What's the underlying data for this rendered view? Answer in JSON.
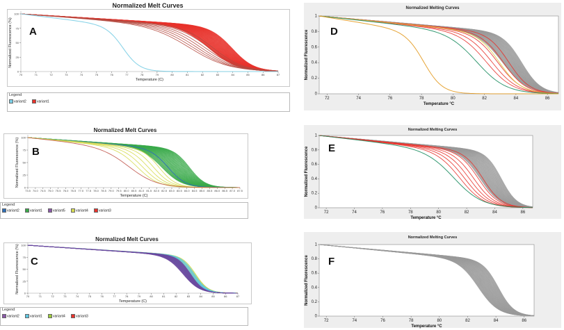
{
  "chart_data": [
    {
      "id": "A",
      "type": "line",
      "panel_label": "A",
      "title": "Normalized Melt Curves",
      "xlabel": "Temperature (C)",
      "ylabel": "Normalized Fluorescence (%)",
      "xlim": [
        70,
        87
      ],
      "ylim": [
        0,
        100
      ],
      "x_ticks": [
        70,
        71,
        72,
        73,
        74,
        75,
        76,
        77,
        78,
        79,
        80,
        81,
        82,
        83,
        84,
        85,
        86,
        87
      ],
      "y_ticks": [
        0,
        25,
        50,
        75,
        100
      ],
      "legend_title": "Legend",
      "legend": [
        {
          "name": "variant2",
          "color": "#7ecfe6"
        },
        {
          "name": "variant1",
          "color": "#e8322b"
        }
      ],
      "series": [
        {
          "name": "variant1",
          "color": "#e8322b",
          "tm": [
            82.5,
            84.0
          ],
          "n": 34,
          "width": 0.85,
          "slope": 2.2
        },
        {
          "name": "variant1",
          "color": "#b5493f",
          "tm": [
            81.3,
            82.8
          ],
          "n": 7,
          "width": 0.85,
          "slope": 3.2
        },
        {
          "name": "variant2",
          "color": "#7ecfe6",
          "tm": [
            76.8,
            76.8
          ],
          "n": 1,
          "width": 1.1,
          "slope": 1.2
        }
      ]
    },
    {
      "id": "B",
      "type": "line",
      "panel_label": "B",
      "title": "Normalized Melt Curves",
      "xlabel": "Temperature (C)",
      "ylabel": "Normalized Fluorescence (%)",
      "xlim": [
        73.5,
        87.5
      ],
      "ylim": [
        0,
        100
      ],
      "x_ticks": [
        73.5,
        74.0,
        74.5,
        75.0,
        75.5,
        76.0,
        76.5,
        77.0,
        77.5,
        78.0,
        78.5,
        79.0,
        79.5,
        80.0,
        80.5,
        81.0,
        81.5,
        82.0,
        82.5,
        83.0,
        83.5,
        84.0,
        84.5,
        85.0,
        85.5,
        86.0,
        86.5,
        87.0,
        87.5
      ],
      "y_ticks": [
        0,
        25,
        50,
        75,
        100
      ],
      "legend_title": "Legend",
      "legend": [
        {
          "name": "variant2",
          "color": "#2f6fb7"
        },
        {
          "name": "variant1",
          "color": "#3aaa4a"
        },
        {
          "name": "variant5",
          "color": "#8a58a8"
        },
        {
          "name": "variant4",
          "color": "#d6db52"
        },
        {
          "name": "variant3",
          "color": "#e8322b"
        }
      ],
      "series": [
        {
          "name": "variant1",
          "color": "#3aaa4a",
          "tm": [
            82.4,
            84.2
          ],
          "n": 32,
          "width": 0.85,
          "slope": 1.5
        },
        {
          "name": "variant2",
          "color": "#2f6fb7",
          "tm": [
            82.8,
            82.8
          ],
          "n": 1,
          "width": 1.0,
          "slope": 1.3
        },
        {
          "name": "variant4",
          "color": "#d6db52",
          "tm": [
            80.8,
            82.2
          ],
          "n": 5,
          "width": 0.9,
          "slope": 1.6
        },
        {
          "name": "variant3",
          "color": "#c0544a",
          "tm": [
            80.3,
            80.3
          ],
          "n": 1,
          "width": 0.9,
          "slope": 2.2
        }
      ]
    },
    {
      "id": "C",
      "type": "line",
      "panel_label": "C",
      "title": "Normalized Melt Curves",
      "xlabel": "Temperature (C)",
      "ylabel": "Normalized Fluorescence (%)",
      "xlim": [
        70,
        87
      ],
      "ylim": [
        0,
        100
      ],
      "x_ticks": [
        70,
        71,
        72,
        73,
        74,
        75,
        76,
        77,
        78,
        79,
        80,
        81,
        82,
        83,
        84,
        85,
        86,
        87
      ],
      "y_ticks": [
        0,
        25,
        50,
        75,
        100
      ],
      "legend_title": "Legend",
      "legend": [
        {
          "name": "variant2",
          "color": "#8a58a8"
        },
        {
          "name": "variant1",
          "color": "#5fc6e0"
        },
        {
          "name": "variant4",
          "color": "#9ccc3a"
        },
        {
          "name": "variant3",
          "color": "#e8322b"
        }
      ],
      "series": [
        {
          "name": "variant4",
          "color": "#c7d84a",
          "tm": [
            83.0,
            83.6
          ],
          "n": 10,
          "width": 0.9,
          "slope": 1.5
        },
        {
          "name": "variant1",
          "color": "#5fc6e0",
          "tm": [
            82.8,
            83.5
          ],
          "n": 12,
          "width": 0.9,
          "slope": 1.5
        },
        {
          "name": "variant2",
          "color": "#6c4aa0",
          "tm": [
            82.6,
            83.2
          ],
          "n": 18,
          "width": 0.9,
          "slope": 1.5
        }
      ]
    },
    {
      "id": "D",
      "type": "line",
      "panel_label": "D",
      "title": "Normalized Melting Curves",
      "xlabel": "Temperature °C",
      "ylabel": "Normalized Fluorescence",
      "xlim": [
        71.5,
        86.7
      ],
      "ylim": [
        0,
        1
      ],
      "x_ticks": [
        72,
        74,
        76,
        78,
        80,
        82,
        84,
        86
      ],
      "y_ticks": [
        0,
        0.2,
        0.4,
        0.6,
        0.8,
        1
      ],
      "series": [
        {
          "name": "gray",
          "color": "#9a9a9a",
          "tm": [
            83.2,
            84.4
          ],
          "n": 40,
          "width": 0.7,
          "slope": 1.8
        },
        {
          "name": "red",
          "color": "#e8322b",
          "tm": [
            82.2,
            83.6
          ],
          "n": 5,
          "width": 0.9,
          "slope": 2.0
        },
        {
          "name": "yellow",
          "color": "#ded04c",
          "tm": [
            83.0,
            83.0
          ],
          "n": 1,
          "width": 1.0,
          "slope": 1.6
        },
        {
          "name": "green",
          "color": "#1f8e63",
          "tm": [
            81.6,
            81.6
          ],
          "n": 1,
          "width": 1.0,
          "slope": 2.2
        },
        {
          "name": "orange",
          "color": "#e39a20",
          "tm": [
            78.2,
            78.2
          ],
          "n": 1,
          "width": 1.0,
          "slope": 1.3
        }
      ]
    },
    {
      "id": "E",
      "type": "line",
      "panel_label": "E",
      "title": "Normalized Melting Curves",
      "xlabel": "Temperature °C",
      "ylabel": "Normalized Fluorescence",
      "xlim": [
        71.5,
        86.7
      ],
      "ylim": [
        0,
        1
      ],
      "x_ticks": [
        72,
        74,
        76,
        78,
        80,
        82,
        84,
        86
      ],
      "y_ticks": [
        0,
        0.2,
        0.4,
        0.6,
        0.8,
        1
      ],
      "series": [
        {
          "name": "gray",
          "color": "#9a9a9a",
          "tm": [
            83.0,
            84.5
          ],
          "n": 40,
          "width": 0.7,
          "slope": 1.6
        },
        {
          "name": "red",
          "color": "#e8322b",
          "tm": [
            81.6,
            83.2
          ],
          "n": 6,
          "width": 0.9,
          "slope": 2.0
        },
        {
          "name": "green",
          "color": "#1f8e63",
          "tm": [
            81.2,
            81.2
          ],
          "n": 1,
          "width": 1.0,
          "slope": 2.4
        }
      ]
    },
    {
      "id": "F",
      "type": "line",
      "panel_label": "F",
      "title": "Normalized Melting Curves",
      "xlabel": "Temperature °C",
      "ylabel": "Normalized Fluorescence",
      "xlim": [
        71.5,
        86.7
      ],
      "ylim": [
        0,
        1
      ],
      "x_ticks": [
        72,
        74,
        76,
        78,
        80,
        82,
        84,
        86
      ],
      "y_ticks": [
        0,
        0.2,
        0.4,
        0.6,
        0.8,
        1
      ],
      "series": [
        {
          "name": "gray",
          "color": "#9a9a9a",
          "tm": [
            82.8,
            84.2
          ],
          "n": 45,
          "width": 0.7,
          "slope": 1.6
        }
      ]
    }
  ]
}
